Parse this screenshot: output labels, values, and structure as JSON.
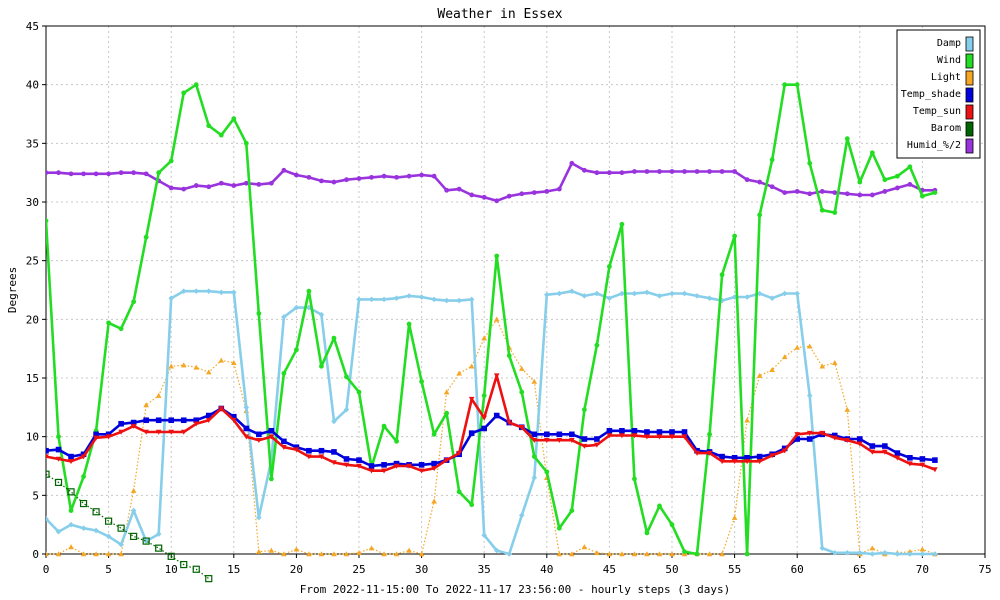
{
  "chart_data": {
    "type": "line",
    "title": "Weather in Essex",
    "xlabel": "From 2022-11-15:00 To 2022-11-17 23:56:00 - hourly steps (3 days)",
    "ylabel": "Degrees",
    "xlim": [
      0,
      75
    ],
    "ylim": [
      0,
      45
    ],
    "xticks": [
      0,
      5,
      10,
      15,
      20,
      25,
      30,
      35,
      40,
      45,
      50,
      55,
      60,
      65,
      70,
      75
    ],
    "yticks": [
      0,
      5,
      10,
      15,
      20,
      25,
      30,
      35,
      40,
      45
    ],
    "grid": true,
    "legend_position": "top-right",
    "series": [
      {
        "name": "Damp",
        "color": "#87ceeb",
        "marker": "diamond",
        "style": "solid",
        "values": [
          3,
          1.9,
          2.5,
          2.2,
          2,
          1.5,
          0.8,
          3.7,
          1.1,
          1.7,
          21.8,
          22.4,
          22.4,
          22.4,
          22.3,
          22.3,
          12.5,
          3.1,
          8,
          20.2,
          21,
          21,
          20.4,
          11.3,
          12.3,
          21.7,
          21.7,
          21.7,
          21.8,
          22,
          21.9,
          21.7,
          21.6,
          21.6,
          21.7,
          1.6,
          0.3,
          0,
          3.3,
          6.5,
          22.1,
          22.2,
          22.4,
          22,
          22.2,
          21.8,
          22.2,
          22.2,
          22.3,
          22,
          22.2,
          22.2,
          22,
          21.8,
          21.6,
          21.9,
          21.9,
          22.2,
          21.8,
          22.2,
          22.2,
          13.5,
          0.5,
          0.1,
          0.1,
          0.1,
          0,
          0.1,
          0,
          0,
          0,
          0
        ]
      },
      {
        "name": "Wind",
        "color": "#22dd22",
        "marker": "dot",
        "style": "solid",
        "values": [
          28.4,
          10,
          3.7,
          6.6,
          10.5,
          19.7,
          19.2,
          21.5,
          27,
          32.5,
          33.5,
          39.3,
          40,
          36.5,
          35.7,
          37.1,
          35,
          20.5,
          6.4,
          15.4,
          17.4,
          22.4,
          16,
          18.4,
          15.1,
          13.8,
          7.4,
          10.9,
          9.6,
          19.6,
          14.7,
          10.2,
          12,
          5.3,
          4.2,
          13.5,
          25.4,
          16.9,
          13.8,
          8.3,
          7,
          2.2,
          3.7,
          12.3,
          17.8,
          24.5,
          28.1,
          6.4,
          1.8,
          4.1,
          2.5,
          0.2,
          0,
          10.2,
          23.8,
          27.1,
          0,
          28.9,
          33.6,
          40,
          40,
          33.3,
          29.3,
          29.1,
          35.4,
          31.7,
          34.2,
          31.9,
          32.2,
          33,
          30.5,
          30.8
        ]
      },
      {
        "name": "Light",
        "color": "#f5a623",
        "marker": "triangle",
        "style": "dotted",
        "values": [
          0,
          0,
          0.6,
          0,
          0,
          0,
          0,
          5.4,
          12.7,
          13.5,
          16,
          16.1,
          15.9,
          15.5,
          16.5,
          16.3,
          12.2,
          0.2,
          0.3,
          0,
          0.4,
          0,
          0,
          0,
          0,
          0.1,
          0.5,
          0,
          0,
          0.3,
          0,
          4.5,
          13.8,
          15.4,
          16,
          18.4,
          20,
          17.6,
          15.8,
          14.7,
          6.5,
          0,
          0,
          0.6,
          0.1,
          0,
          0,
          0,
          0,
          0,
          0,
          0,
          0,
          0,
          0,
          3.1,
          11.4,
          15.2,
          15.7,
          16.8,
          17.6,
          17.7,
          16,
          16.3,
          12.3,
          0,
          0.5,
          0,
          0.1,
          0.2,
          0.4,
          0
        ]
      },
      {
        "name": "Temp_shade",
        "color": "#0000dd",
        "marker": "square",
        "style": "solid",
        "values": [
          8.8,
          8.9,
          8.3,
          8.5,
          10.2,
          10.2,
          11.1,
          11.2,
          11.4,
          11.4,
          11.4,
          11.4,
          11.4,
          11.8,
          12.4,
          11.7,
          10.7,
          10.2,
          10.5,
          9.6,
          9.1,
          8.8,
          8.8,
          8.7,
          8.1,
          8,
          7.5,
          7.6,
          7.7,
          7.6,
          7.6,
          7.7,
          8,
          8.5,
          10.3,
          10.7,
          11.8,
          11.2,
          10.8,
          10.2,
          10.2,
          10.2,
          10.2,
          9.8,
          9.8,
          10.5,
          10.5,
          10.5,
          10.4,
          10.4,
          10.4,
          10.4,
          8.8,
          8.7,
          8.3,
          8.2,
          8.2,
          8.3,
          8.5,
          9,
          9.8,
          9.8,
          10.2,
          10.1,
          9.8,
          9.8,
          9.2,
          9.2,
          8.6,
          8.2,
          8.1,
          8
        ]
      },
      {
        "name": "Temp_sun",
        "color": "#ee1111",
        "marker": "triangle-down",
        "style": "solid",
        "values": [
          8.3,
          8.1,
          7.9,
          8.3,
          9.9,
          10,
          10.4,
          10.9,
          10.4,
          10.4,
          10.4,
          10.4,
          11.1,
          11.4,
          12.4,
          11.4,
          10,
          9.7,
          10,
          9.1,
          8.9,
          8.3,
          8.3,
          7.8,
          7.6,
          7.5,
          7.1,
          7.1,
          7.5,
          7.5,
          7.1,
          7.3,
          8,
          8.6,
          13.2,
          11.6,
          15.2,
          11.2,
          10.8,
          9.7,
          9.7,
          9.7,
          9.7,
          9.2,
          9.3,
          10.1,
          10.1,
          10.1,
          10,
          10,
          10,
          10,
          8.6,
          8.6,
          7.9,
          7.9,
          7.9,
          7.9,
          8.4,
          8.8,
          10.2,
          10.3,
          10.3,
          9.9,
          9.7,
          9.4,
          8.7,
          8.7,
          8.2,
          7.7,
          7.6,
          7.2
        ]
      },
      {
        "name": "Barom",
        "color": "#006400",
        "marker": "open-square",
        "style": "dotted",
        "values": [
          6.8,
          6.1,
          5.3,
          4.3,
          3.6,
          2.8,
          2.2,
          1.5,
          1.1,
          0.5,
          -0.2,
          -0.9,
          -1.3,
          -2.1,
          null,
          null,
          null,
          null,
          null,
          null,
          null,
          null,
          null,
          null,
          null,
          null,
          null,
          null,
          null,
          null,
          null,
          null,
          null,
          null,
          null,
          null,
          null,
          null,
          null,
          null,
          null,
          null,
          null,
          null,
          null,
          null,
          null,
          null,
          null,
          null,
          null,
          null,
          null,
          null,
          null,
          null,
          null,
          null,
          null,
          null,
          null,
          null,
          null,
          null,
          null,
          null,
          null,
          null,
          null,
          null,
          null,
          null
        ]
      },
      {
        "name": "Humid_%/2",
        "color": "#9933dd",
        "marker": "dot",
        "style": "solid",
        "values": [
          32.5,
          32.5,
          32.4,
          32.4,
          32.4,
          32.4,
          32.5,
          32.5,
          32.4,
          31.8,
          31.2,
          31.1,
          31.4,
          31.3,
          31.6,
          31.4,
          31.6,
          31.5,
          31.6,
          32.7,
          32.3,
          32.1,
          31.8,
          31.7,
          31.9,
          32,
          32.1,
          32.2,
          32.1,
          32.2,
          32.3,
          32.2,
          31,
          31.1,
          30.6,
          30.4,
          30.1,
          30.5,
          30.7,
          30.8,
          30.9,
          31.1,
          33.3,
          32.7,
          32.5,
          32.5,
          32.5,
          32.6,
          32.6,
          32.6,
          32.6,
          32.6,
          32.6,
          32.6,
          32.6,
          32.6,
          31.9,
          31.7,
          31.3,
          30.8,
          30.9,
          30.7,
          30.9,
          30.8,
          30.7,
          30.6,
          30.6,
          30.9,
          31.2,
          31.5,
          31,
          31
        ]
      }
    ]
  }
}
